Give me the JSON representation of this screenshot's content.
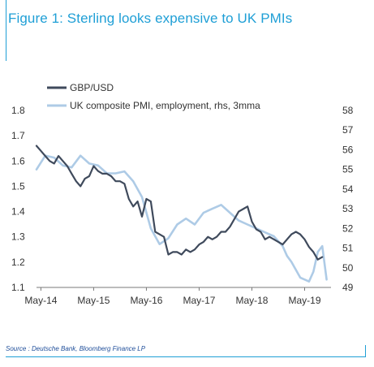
{
  "title": "Figure 1: Sterling looks expensive to UK PMIs",
  "source": "Source : Deutsche Bank, Bloomberg Finance LP",
  "colors": {
    "accent": "#1f9fd6",
    "gbp": "#3f4a5c",
    "pmi": "#aecbe6",
    "source_text": "#1f4e9a"
  },
  "chart_data": {
    "type": "line",
    "title": "Figure 1: Sterling looks expensive to UK PMIs",
    "x_ticks": [
      "May-14",
      "May-15",
      "May-16",
      "May-17",
      "May-18",
      "May-19"
    ],
    "xlim": [
      "2014-04",
      "2019-11"
    ],
    "y_left_ticks": [
      "1.1",
      "1.2",
      "1.3",
      "1.4",
      "1.5",
      "1.6",
      "1.7",
      "1.8"
    ],
    "y_left_lim": [
      1.1,
      1.8
    ],
    "y_right_ticks": [
      "49",
      "50",
      "51",
      "52",
      "53",
      "54",
      "55",
      "56",
      "57",
      "58"
    ],
    "y_right_lim": [
      49,
      58
    ],
    "legend_position": "top-left",
    "series": [
      {
        "name": "GBP/USD",
        "axis": "left",
        "color": "#3f4a5c",
        "x": [
          "2014-04",
          "2014-05",
          "2014-06",
          "2014-07",
          "2014-08",
          "2014-09",
          "2014-10",
          "2014-11",
          "2014-12",
          "2015-01",
          "2015-02",
          "2015-03",
          "2015-04",
          "2015-05",
          "2015-06",
          "2015-07",
          "2015-08",
          "2015-09",
          "2015-10",
          "2015-11",
          "2015-12",
          "2016-01",
          "2016-02",
          "2016-03",
          "2016-04",
          "2016-05",
          "2016-06",
          "2016-07",
          "2016-08",
          "2016-09",
          "2016-10",
          "2016-11",
          "2016-12",
          "2017-01",
          "2017-02",
          "2017-03",
          "2017-04",
          "2017-05",
          "2017-06",
          "2017-07",
          "2017-08",
          "2017-09",
          "2017-10",
          "2017-11",
          "2017-12",
          "2018-01",
          "2018-02",
          "2018-03",
          "2018-04",
          "2018-05",
          "2018-06",
          "2018-07",
          "2018-08",
          "2018-09",
          "2018-10",
          "2018-11",
          "2018-12",
          "2019-01",
          "2019-02",
          "2019-03",
          "2019-04",
          "2019-05",
          "2019-06",
          "2019-07",
          "2019-08",
          "2019-09"
        ],
        "y": [
          1.66,
          1.64,
          1.62,
          1.6,
          1.59,
          1.62,
          1.6,
          1.58,
          1.55,
          1.52,
          1.5,
          1.53,
          1.54,
          1.58,
          1.56,
          1.55,
          1.55,
          1.54,
          1.52,
          1.52,
          1.51,
          1.45,
          1.42,
          1.44,
          1.38,
          1.45,
          1.44,
          1.32,
          1.31,
          1.3,
          1.23,
          1.24,
          1.24,
          1.23,
          1.25,
          1.24,
          1.25,
          1.27,
          1.28,
          1.3,
          1.29,
          1.3,
          1.32,
          1.32,
          1.34,
          1.37,
          1.4,
          1.41,
          1.42,
          1.36,
          1.33,
          1.32,
          1.29,
          1.3,
          1.29,
          1.28,
          1.27,
          1.29,
          1.31,
          1.32,
          1.31,
          1.29,
          1.26,
          1.24,
          1.21,
          1.22
        ]
      },
      {
        "name": "UK composite PMI, employment, rhs, 3mma",
        "axis": "right",
        "color": "#aecbe6",
        "x": [
          "2014-04",
          "2014-06",
          "2014-08",
          "2014-10",
          "2014-12",
          "2015-02",
          "2015-04",
          "2015-06",
          "2015-08",
          "2015-10",
          "2015-12",
          "2016-02",
          "2016-04",
          "2016-06",
          "2016-08",
          "2016-10",
          "2016-12",
          "2017-02",
          "2017-04",
          "2017-06",
          "2017-08",
          "2017-10",
          "2017-12",
          "2018-02",
          "2018-04",
          "2018-06",
          "2018-08",
          "2018-10",
          "2018-12",
          "2019-01",
          "2019-02",
          "2019-04",
          "2019-06",
          "2019-07",
          "2019-08",
          "2019-09",
          "2019-10"
        ],
        "y": [
          55.0,
          55.7,
          55.6,
          55.2,
          55.1,
          55.7,
          55.3,
          55.2,
          54.8,
          54.8,
          54.9,
          54.4,
          53.6,
          52.0,
          51.2,
          51.5,
          52.2,
          52.5,
          52.2,
          52.8,
          53.0,
          53.2,
          52.8,
          52.4,
          52.2,
          52.0,
          51.8,
          51.6,
          51.1,
          50.6,
          50.3,
          49.5,
          49.3,
          49.8,
          50.8,
          51.1,
          49.4
        ]
      }
    ]
  }
}
